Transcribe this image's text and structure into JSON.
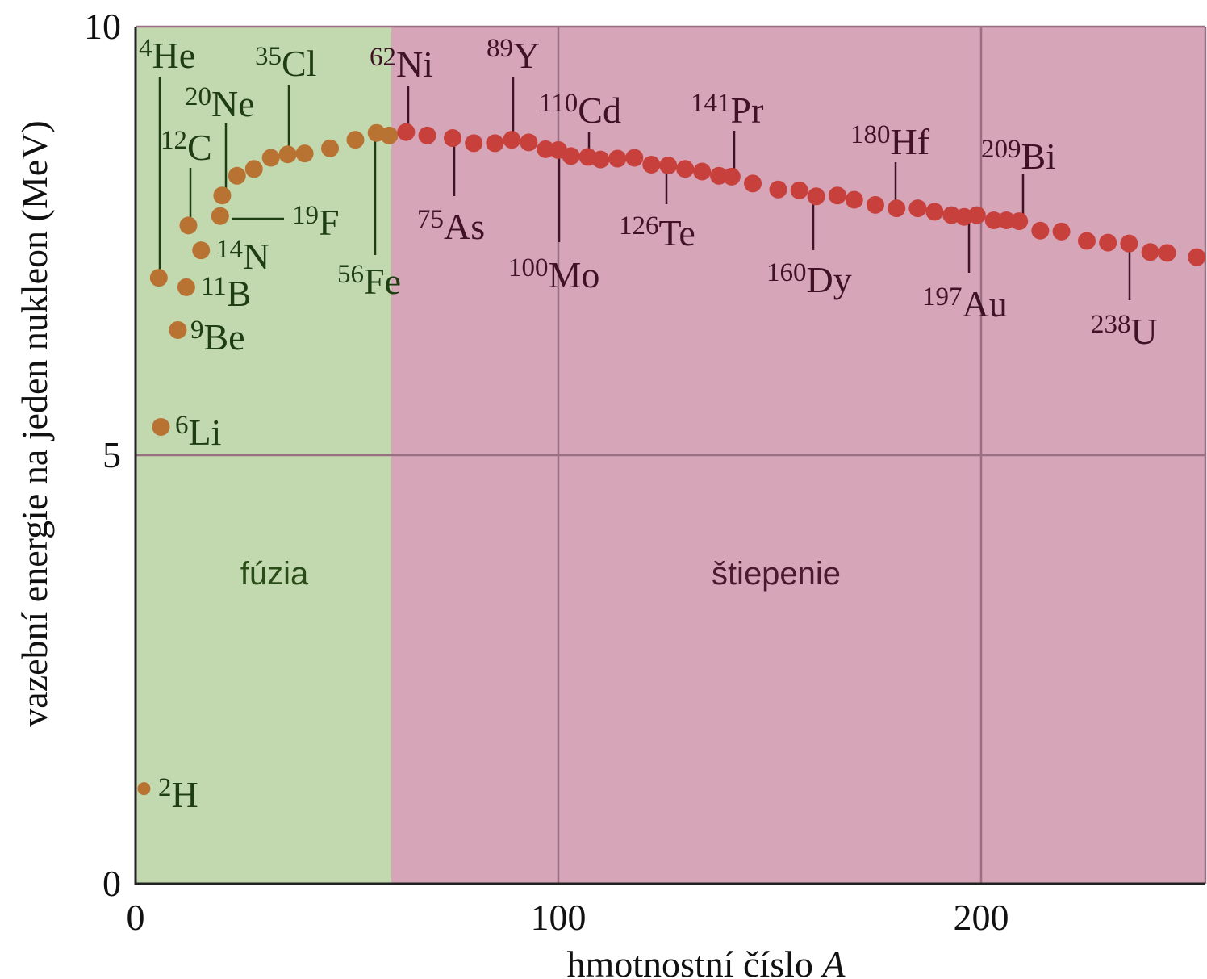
{
  "chart_data": {
    "type": "scatter",
    "xlabel": "hmotnostní číslo",
    "xlabel_var": "A",
    "ylabel": "vazební energie na jeden nukleon (MeV)",
    "xlim": [
      0,
      252
    ],
    "ylim": [
      0,
      10
    ],
    "xticks": [
      0,
      100,
      200
    ],
    "yticks": [
      0,
      5,
      10
    ],
    "grid": true,
    "fusion_boundary_A": 60.5,
    "regions": [
      {
        "name": "fúzia",
        "color": "#c2d9b0",
        "text_color": "#2a4d18"
      },
      {
        "name": "štiepenie",
        "color": "#d6a5b8",
        "text_color": "#4a1a2e"
      }
    ],
    "colors": {
      "fusion_point": "#b87333",
      "fission_point": "#c8403b",
      "fusion_label": "#1f3d12",
      "fission_label": "#3f1226",
      "grid": "#9a6f82",
      "axis": "#222222"
    },
    "series": [
      {
        "group": "fusion",
        "points": [
          {
            "A": 2,
            "E": 1.11
          },
          {
            "A": 6,
            "E": 5.33
          },
          {
            "A": 5.5,
            "E": 7.07
          },
          {
            "A": 10,
            "E": 6.46
          },
          {
            "A": 12,
            "E": 6.96
          },
          {
            "A": 12.5,
            "E": 7.68
          },
          {
            "A": 15.5,
            "E": 7.39
          },
          {
            "A": 20,
            "E": 7.79
          },
          {
            "A": 20.5,
            "E": 8.03
          },
          {
            "A": 24,
            "E": 8.26
          },
          {
            "A": 28,
            "E": 8.34
          },
          {
            "A": 32,
            "E": 8.47
          },
          {
            "A": 36,
            "E": 8.51
          },
          {
            "A": 40,
            "E": 8.52
          },
          {
            "A": 46,
            "E": 8.58
          },
          {
            "A": 52,
            "E": 8.68
          },
          {
            "A": 57,
            "E": 8.76
          },
          {
            "A": 60,
            "E": 8.73
          }
        ]
      },
      {
        "group": "fission",
        "points": [
          {
            "A": 64,
            "E": 8.77
          },
          {
            "A": 69,
            "E": 8.73
          },
          {
            "A": 75,
            "E": 8.7
          },
          {
            "A": 80,
            "E": 8.64
          },
          {
            "A": 85,
            "E": 8.64
          },
          {
            "A": 89,
            "E": 8.68
          },
          {
            "A": 93,
            "E": 8.65
          },
          {
            "A": 97,
            "E": 8.57
          },
          {
            "A": 100,
            "E": 8.56
          },
          {
            "A": 103,
            "E": 8.49
          },
          {
            "A": 107,
            "E": 8.48
          },
          {
            "A": 110,
            "E": 8.45
          },
          {
            "A": 114,
            "E": 8.46
          },
          {
            "A": 118,
            "E": 8.47
          },
          {
            "A": 122,
            "E": 8.39
          },
          {
            "A": 126,
            "E": 8.38
          },
          {
            "A": 130,
            "E": 8.34
          },
          {
            "A": 134,
            "E": 8.31
          },
          {
            "A": 138,
            "E": 8.26
          },
          {
            "A": 141,
            "E": 8.25
          },
          {
            "A": 146,
            "E": 8.17
          },
          {
            "A": 152,
            "E": 8.1
          },
          {
            "A": 157,
            "E": 8.09
          },
          {
            "A": 161,
            "E": 8.02
          },
          {
            "A": 166,
            "E": 8.03
          },
          {
            "A": 170,
            "E": 7.98
          },
          {
            "A": 175,
            "E": 7.92
          },
          {
            "A": 180,
            "E": 7.88
          },
          {
            "A": 185,
            "E": 7.88
          },
          {
            "A": 189,
            "E": 7.84
          },
          {
            "A": 193,
            "E": 7.8
          },
          {
            "A": 196,
            "E": 7.78
          },
          {
            "A": 199,
            "E": 7.8
          },
          {
            "A": 203,
            "E": 7.74
          },
          {
            "A": 206,
            "E": 7.74
          },
          {
            "A": 209,
            "E": 7.73
          },
          {
            "A": 214,
            "E": 7.62
          },
          {
            "A": 219,
            "E": 7.61
          },
          {
            "A": 225,
            "E": 7.5
          },
          {
            "A": 230,
            "E": 7.48
          },
          {
            "A": 235,
            "E": 7.47
          },
          {
            "A": 240,
            "E": 7.37
          },
          {
            "A": 244,
            "E": 7.36
          },
          {
            "A": 251,
            "E": 7.31
          }
        ]
      }
    ],
    "annotations": [
      {
        "group": "fusion",
        "mass": "2",
        "symbol": "H"
      },
      {
        "group": "fusion",
        "mass": "6",
        "symbol": "Li"
      },
      {
        "group": "fusion",
        "mass": "9",
        "symbol": "Be"
      },
      {
        "group": "fusion",
        "mass": "11",
        "symbol": "B"
      },
      {
        "group": "fusion",
        "mass": "14",
        "symbol": "N"
      },
      {
        "group": "fusion",
        "mass": "19",
        "symbol": "F"
      },
      {
        "group": "fusion",
        "mass": "4",
        "symbol": "He"
      },
      {
        "group": "fusion",
        "mass": "12",
        "symbol": "C"
      },
      {
        "group": "fusion",
        "mass": "20",
        "symbol": "Ne"
      },
      {
        "group": "fusion",
        "mass": "35",
        "symbol": "Cl"
      },
      {
        "group": "fusion",
        "mass": "56",
        "symbol": "Fe"
      },
      {
        "group": "fission",
        "mass": "62",
        "symbol": "Ni"
      },
      {
        "group": "fission",
        "mass": "75",
        "symbol": "As"
      },
      {
        "group": "fission",
        "mass": "89",
        "symbol": "Y"
      },
      {
        "group": "fission",
        "mass": "100",
        "symbol": "Mo"
      },
      {
        "group": "fission",
        "mass": "110",
        "symbol": "Cd"
      },
      {
        "group": "fission",
        "mass": "126",
        "symbol": "Te"
      },
      {
        "group": "fission",
        "mass": "141",
        "symbol": "Pr"
      },
      {
        "group": "fission",
        "mass": "160",
        "symbol": "Dy"
      },
      {
        "group": "fission",
        "mass": "180",
        "symbol": "Hf"
      },
      {
        "group": "fission",
        "mass": "197",
        "symbol": "Au"
      },
      {
        "group": "fission",
        "mass": "209",
        "symbol": "Bi"
      },
      {
        "group": "fission",
        "mass": "238",
        "symbol": "U"
      }
    ]
  }
}
